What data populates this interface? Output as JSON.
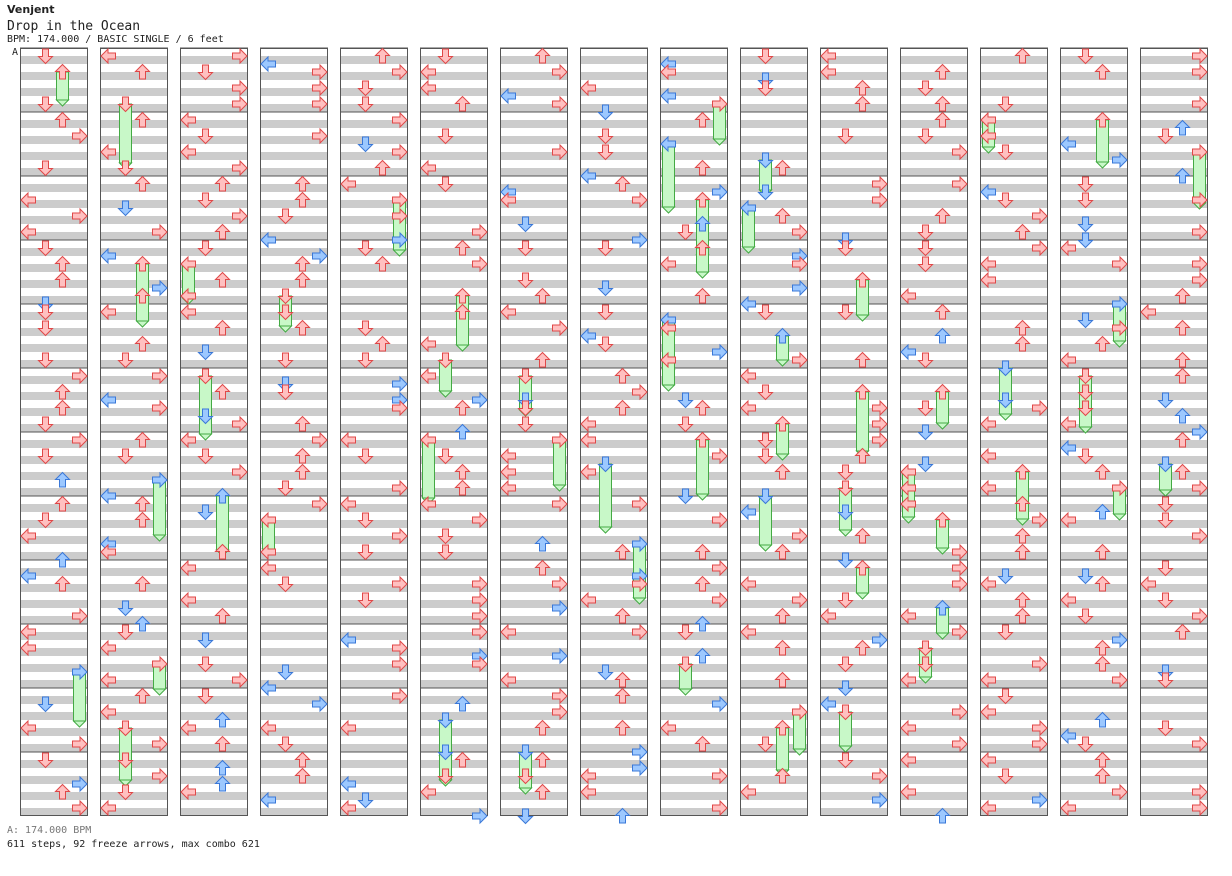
{
  "header": {
    "artist": "Venjent",
    "title": "Drop in the Ocean",
    "meta": "BPM: 174.000 / BASIC SINGLE / 6 feet"
  },
  "bpm_marker": "A",
  "footer": {
    "bpm_line": "A: 174.000 BPM",
    "stats": "611 steps, 92 freeze arrows, max combo 621"
  },
  "colors": {
    "stripe": "#cccccc",
    "column_border": "#555555",
    "arrow_red_fill": "#ffc0c0",
    "arrow_red_stroke": "#e04848",
    "arrow_blue_fill": "#9cc8ff",
    "arrow_blue_stroke": "#3a78d8",
    "freeze_fill": "#c8f8c8",
    "freeze_stroke": "#44aa44"
  },
  "chart_data": {
    "type": "step-chart",
    "columns": 15,
    "measures_per_column": 12,
    "lanes": [
      "left",
      "down",
      "up",
      "right"
    ],
    "total_steps": 611,
    "freeze_arrows": 92,
    "max_combo": 621
  }
}
